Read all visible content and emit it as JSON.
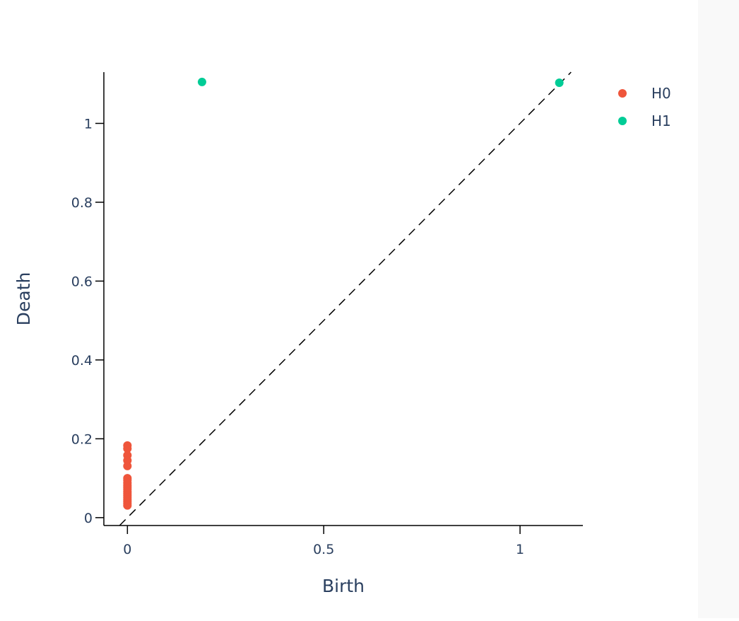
{
  "colors": {
    "h0": "#ef553b",
    "h1": "#00cc96",
    "axis": "#000000",
    "text": "#2a3f5f",
    "background": "#ffffff"
  },
  "chart_data": {
    "type": "scatter",
    "title": "",
    "xlabel": "Birth",
    "ylabel": "Death",
    "xlim": [
      -0.06,
      1.16
    ],
    "ylim": [
      -0.02,
      1.13
    ],
    "x_ticks": [
      {
        "value": 0,
        "label": "0"
      },
      {
        "value": 0.5,
        "label": "0.5"
      },
      {
        "value": 1,
        "label": "1"
      }
    ],
    "y_ticks": [
      {
        "value": 0,
        "label": "0"
      },
      {
        "value": 0.2,
        "label": "0.2"
      },
      {
        "value": 0.4,
        "label": "0.4"
      },
      {
        "value": 0.6,
        "label": "0.6"
      },
      {
        "value": 0.8,
        "label": "0.8"
      },
      {
        "value": 1,
        "label": "1"
      }
    ],
    "grid": false,
    "legend_position": "top-right",
    "diagonal": {
      "from": [
        -0.02,
        -0.02
      ],
      "to": [
        1.13,
        1.13
      ],
      "style": "dashed"
    },
    "series": [
      {
        "name": "H0",
        "color_key": "h0",
        "points": [
          {
            "x": 0,
            "y": 0.183
          },
          {
            "x": 0,
            "y": 0.175
          },
          {
            "x": 0,
            "y": 0.158
          },
          {
            "x": 0,
            "y": 0.145
          },
          {
            "x": 0,
            "y": 0.131
          },
          {
            "x": 0,
            "y": 0.1
          },
          {
            "x": 0,
            "y": 0.095
          },
          {
            "x": 0,
            "y": 0.088
          },
          {
            "x": 0,
            "y": 0.082
          },
          {
            "x": 0,
            "y": 0.077
          },
          {
            "x": 0,
            "y": 0.072
          },
          {
            "x": 0,
            "y": 0.066
          },
          {
            "x": 0,
            "y": 0.061
          },
          {
            "x": 0,
            "y": 0.056
          },
          {
            "x": 0,
            "y": 0.051
          },
          {
            "x": 0,
            "y": 0.046
          },
          {
            "x": 0,
            "y": 0.041
          },
          {
            "x": 0,
            "y": 0.036
          },
          {
            "x": 0,
            "y": 0.031
          }
        ]
      },
      {
        "name": "H1",
        "color_key": "h1",
        "points": [
          {
            "x": 0.19,
            "y": 1.105
          },
          {
            "x": 1.1,
            "y": 1.103
          }
        ]
      }
    ]
  }
}
